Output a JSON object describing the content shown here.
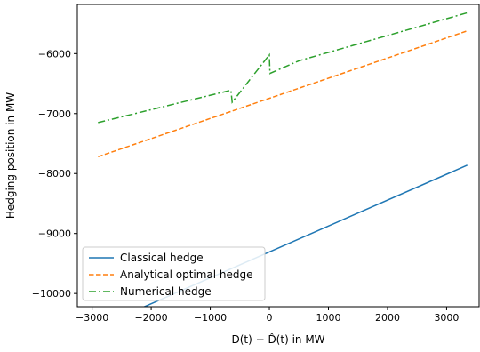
{
  "chart_data": {
    "type": "line",
    "title": "",
    "xlabel": "D(t) − D̂(t) in MW",
    "ylabel": "Hedging position in MW",
    "xlim": [
      -3250,
      3550
    ],
    "ylim": [
      -10220,
      -5180
    ],
    "xticks": [
      -3000,
      -2000,
      -1000,
      0,
      1000,
      2000,
      3000
    ],
    "yticks": [
      -10000,
      -9000,
      -8000,
      -7000,
      -6000
    ],
    "xtick_labels": [
      "−3000",
      "−2000",
      "−1000",
      "0",
      "1000",
      "2000",
      "3000"
    ],
    "ytick_labels": [
      "−10000",
      "−9000",
      "−8000",
      "−7000",
      "−6000"
    ],
    "grid": false,
    "legend_position": "lower-left",
    "series": [
      {
        "name": "Classical hedge",
        "color": "#1f77b4",
        "style": "solid",
        "x": [
          -2900,
          3350
        ],
        "y": [
          -10560,
          -7860
        ]
      },
      {
        "name": "Analytical optimal hedge",
        "color": "#ff7f0e",
        "style": "dashed",
        "x": [
          -2900,
          3350
        ],
        "y": [
          -7720,
          -5620
        ]
      },
      {
        "name": "Numerical hedge",
        "color": "#2ca02c",
        "style": "dashdot",
        "x": [
          -2900,
          -650,
          -630,
          0,
          10,
          500,
          3350
        ],
        "y": [
          -7150,
          -6610,
          -6810,
          -6020,
          -6330,
          -6120,
          -5320
        ]
      }
    ]
  }
}
